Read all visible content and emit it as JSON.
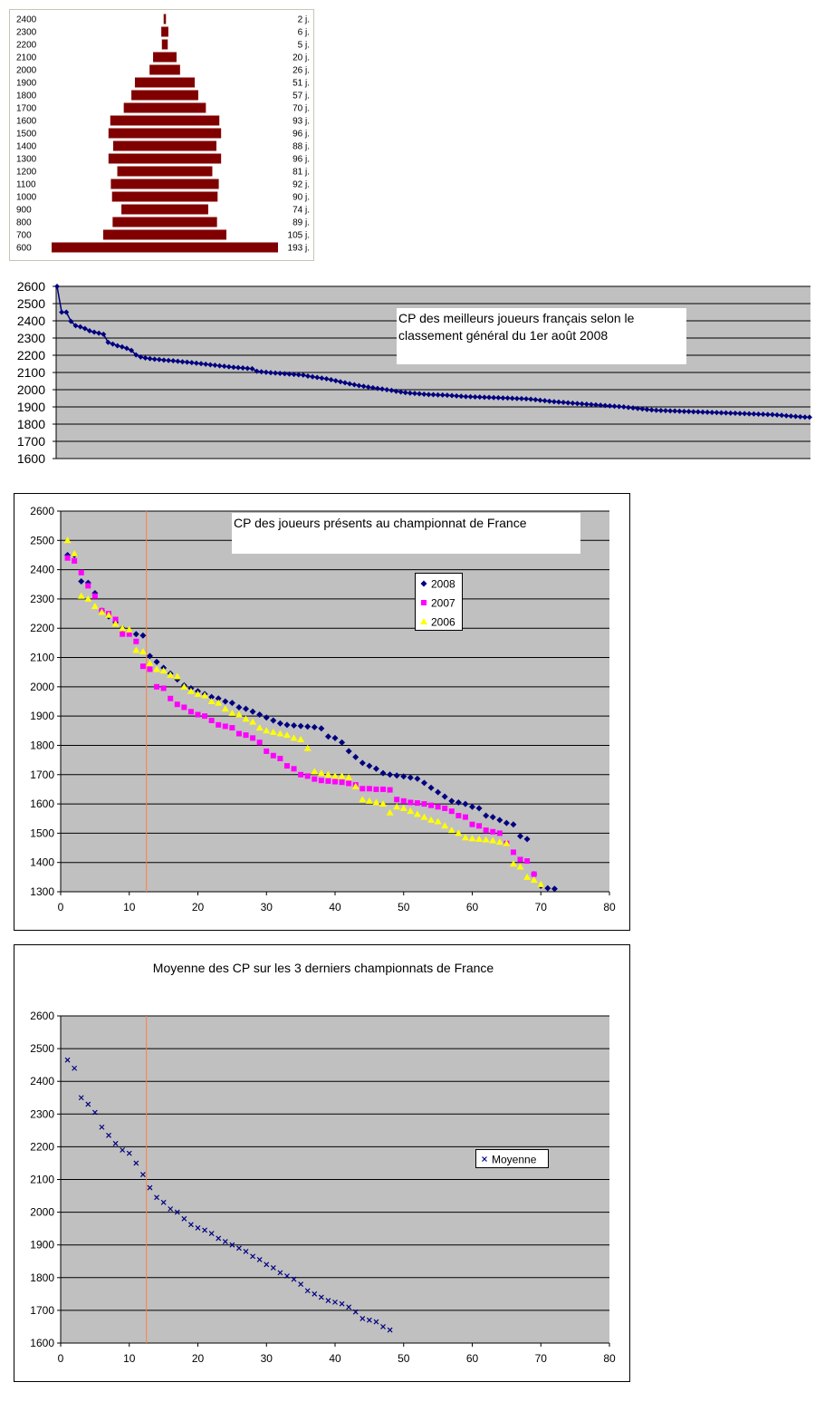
{
  "chart_data": [
    {
      "type": "bar",
      "colors": {
        "bar": "#800000",
        "frame": "#c9c4b4"
      },
      "categories": [
        "2400",
        "2300",
        "2200",
        "2100",
        "2000",
        "1900",
        "1800",
        "1700",
        "1600",
        "1500",
        "1400",
        "1300",
        "1200",
        "1100",
        "1000",
        "900",
        "800",
        "700",
        "600"
      ],
      "values": [
        2,
        6,
        5,
        20,
        26,
        51,
        57,
        70,
        93,
        96,
        88,
        96,
        81,
        92,
        90,
        74,
        89,
        105,
        193
      ],
      "value_labels": [
        "2 j.",
        "6 j.",
        "5 j.",
        "20 j.",
        "26 j.",
        "51 j.",
        "57 j.",
        "70 j.",
        "93 j.",
        "96 j.",
        "88 j.",
        "96 j.",
        "81 j.",
        "92 j.",
        "90 j.",
        "74 j.",
        "89 j.",
        "105 j.",
        "193 j."
      ]
    },
    {
      "type": "line",
      "title": "CP des meilleurs joueurs français selon le classement général du 1er août 2008",
      "title_lines": [
        "CP des meilleurs joueurs français selon le",
        "classement général du 1er août 2008"
      ],
      "ylim": [
        1600,
        2600
      ],
      "yticks": [
        "1600",
        "1700",
        "1800",
        "1900",
        "2000",
        "2100",
        "2200",
        "2300",
        "2400",
        "2500",
        "2600"
      ],
      "grid": true,
      "colors": {
        "plot_bg": "#c0c0c0",
        "series": "#000080"
      },
      "series": [
        {
          "values": [
            2600,
            2450,
            2450,
            2397,
            2372,
            2365,
            2355,
            2342,
            2334,
            2328,
            2322,
            2275,
            2265,
            2255,
            2249,
            2240,
            2228,
            2202,
            2190,
            2184,
            2180,
            2177,
            2175,
            2172,
            2170,
            2168,
            2165,
            2162,
            2160,
            2157,
            2154,
            2151,
            2148,
            2145,
            2142,
            2139,
            2136,
            2133,
            2130,
            2128,
            2126,
            2124,
            2122,
            2107,
            2104,
            2101,
            2099,
            2097,
            2095,
            2093,
            2091,
            2089,
            2087,
            2085,
            2079,
            2075,
            2071,
            2067,
            2063,
            2058,
            2052,
            2046,
            2040,
            2034,
            2029,
            2024,
            2020,
            2015,
            2011,
            2007,
            2004,
            2000,
            1996,
            1991,
            1987,
            1983,
            1980,
            1978,
            1976,
            1974,
            1972,
            1971,
            1970,
            1969,
            1968,
            1966,
            1964,
            1962,
            1960,
            1959,
            1958,
            1957,
            1956,
            1955,
            1954,
            1953,
            1952,
            1951,
            1950,
            1949,
            1948,
            1947,
            1945,
            1942,
            1939,
            1936,
            1933,
            1930,
            1928,
            1926,
            1924,
            1922,
            1920,
            1918,
            1916,
            1914,
            1912,
            1910,
            1908,
            1906,
            1904,
            1902,
            1900,
            1897,
            1894,
            1891,
            1888,
            1885,
            1882,
            1880,
            1879,
            1878,
            1877,
            1876,
            1875,
            1874,
            1873,
            1872,
            1871,
            1870,
            1869,
            1868,
            1867,
            1866,
            1865,
            1864,
            1863,
            1862,
            1861,
            1860,
            1859,
            1858,
            1857,
            1856,
            1855,
            1853,
            1851,
            1849,
            1847,
            1845,
            1843,
            1841,
            1840
          ]
        }
      ]
    },
    {
      "type": "scatter",
      "title": "CP des joueurs présents au championnat de France",
      "xlim": [
        0,
        80
      ],
      "ylim": [
        1300,
        2600
      ],
      "xticks": [
        "0",
        "10",
        "20",
        "30",
        "40",
        "50",
        "60",
        "70",
        "80"
      ],
      "yticks": [
        "1300",
        "1400",
        "1500",
        "1600",
        "1700",
        "1800",
        "1900",
        "2000",
        "2100",
        "2200",
        "2300",
        "2400",
        "2500",
        "2600"
      ],
      "grid": true,
      "legend_position": "right",
      "reference_x": 12.5,
      "colors": {
        "plot_bg": "#c0c0c0",
        "reference_line": "#ff8040"
      },
      "series": [
        {
          "name": "2008",
          "marker": "diamond",
          "color": "#000080",
          "x": [
            1,
            2,
            3,
            4,
            5,
            6,
            7,
            8,
            9,
            10,
            11,
            12,
            13,
            14,
            15,
            16,
            17,
            18,
            19,
            20,
            21,
            22,
            23,
            24,
            25,
            26,
            27,
            28,
            29,
            30,
            31,
            32,
            33,
            34,
            35,
            36,
            37,
            38,
            39,
            40,
            41,
            42,
            43,
            44,
            45,
            46,
            47,
            48,
            49,
            50,
            51,
            52,
            53,
            54,
            55,
            56,
            57,
            58,
            59,
            60,
            61,
            62,
            63,
            64,
            65,
            66,
            67,
            68,
            69,
            70,
            71,
            72
          ],
          "y": [
            2450,
            2450,
            2360,
            2355,
            2320,
            2260,
            2240,
            2220,
            2200,
            2190,
            2180,
            2175,
            2105,
            2085,
            2065,
            2045,
            2025,
            2005,
            1995,
            1985,
            1975,
            1965,
            1960,
            1950,
            1945,
            1930,
            1925,
            1915,
            1905,
            1895,
            1885,
            1875,
            1870,
            1868,
            1866,
            1864,
            1862,
            1858,
            1830,
            1825,
            1810,
            1780,
            1760,
            1740,
            1730,
            1720,
            1705,
            1700,
            1697,
            1694,
            1690,
            1686,
            1672,
            1655,
            1640,
            1625,
            1610,
            1605,
            1600,
            1590,
            1585,
            1560,
            1555,
            1545,
            1535,
            1530,
            1490,
            1480,
            1360,
            1320,
            1312,
            1310
          ]
        },
        {
          "name": "2007",
          "marker": "square",
          "color": "#ff00ff",
          "x": [
            1,
            2,
            3,
            4,
            5,
            6,
            7,
            8,
            9,
            10,
            11,
            12,
            13,
            14,
            15,
            16,
            17,
            18,
            19,
            20,
            21,
            22,
            23,
            24,
            25,
            26,
            27,
            28,
            29,
            30,
            31,
            32,
            33,
            34,
            35,
            36,
            37,
            38,
            39,
            40,
            41,
            42,
            43,
            44,
            45,
            46,
            47,
            48,
            49,
            50,
            51,
            52,
            53,
            54,
            55,
            56,
            57,
            58,
            59,
            60,
            61,
            62,
            63,
            64,
            65,
            66,
            67,
            68,
            69
          ],
          "y": [
            2440,
            2430,
            2390,
            2345,
            2310,
            2260,
            2250,
            2230,
            2180,
            2180,
            2155,
            2070,
            2060,
            2000,
            1995,
            1960,
            1940,
            1930,
            1915,
            1905,
            1900,
            1885,
            1870,
            1865,
            1860,
            1840,
            1835,
            1825,
            1810,
            1780,
            1765,
            1755,
            1730,
            1720,
            1700,
            1695,
            1685,
            1680,
            1678,
            1676,
            1674,
            1670,
            1665,
            1652,
            1652,
            1650,
            1650,
            1648,
            1615,
            1610,
            1605,
            1603,
            1600,
            1595,
            1590,
            1585,
            1575,
            1560,
            1555,
            1530,
            1525,
            1510,
            1505,
            1500,
            1465,
            1435,
            1410,
            1405,
            1360
          ]
        },
        {
          "name": "2006",
          "marker": "triangle",
          "color": "#ffff00",
          "x": [
            1,
            2,
            3,
            4,
            5,
            6,
            7,
            8,
            9,
            10,
            11,
            12,
            13,
            14,
            15,
            16,
            17,
            18,
            19,
            20,
            21,
            22,
            23,
            24,
            25,
            26,
            27,
            28,
            29,
            30,
            31,
            32,
            33,
            34,
            35,
            36,
            37,
            38,
            39,
            40,
            41,
            42,
            43,
            44,
            45,
            46,
            47,
            48,
            49,
            50,
            51,
            52,
            53,
            54,
            55,
            56,
            57,
            58,
            59,
            60,
            61,
            62,
            63,
            64,
            65,
            66,
            67,
            68,
            69,
            70
          ],
          "y": [
            2500,
            2455,
            2310,
            2300,
            2275,
            2255,
            2245,
            2215,
            2200,
            2195,
            2125,
            2120,
            2080,
            2060,
            2055,
            2040,
            2035,
            2000,
            1985,
            1975,
            1970,
            1950,
            1945,
            1925,
            1910,
            1905,
            1890,
            1880,
            1860,
            1850,
            1845,
            1840,
            1835,
            1825,
            1820,
            1790,
            1710,
            1705,
            1700,
            1695,
            1695,
            1690,
            1660,
            1615,
            1610,
            1605,
            1600,
            1570,
            1590,
            1585,
            1575,
            1565,
            1555,
            1545,
            1540,
            1525,
            1510,
            1500,
            1485,
            1482,
            1480,
            1478,
            1475,
            1470,
            1465,
            1395,
            1385,
            1350,
            1340,
            1325
          ]
        }
      ]
    },
    {
      "type": "scatter",
      "title": "Moyenne des CP sur les 3 derniers championnats de France",
      "xlim": [
        0,
        80
      ],
      "ylim": [
        1600,
        2600
      ],
      "xticks": [
        "0",
        "10",
        "20",
        "30",
        "40",
        "50",
        "60",
        "70",
        "80"
      ],
      "yticks": [
        "1600",
        "1700",
        "1800",
        "1900",
        "2000",
        "2100",
        "2200",
        "2300",
        "2400",
        "2500",
        "2600"
      ],
      "grid": true,
      "legend_position": "right",
      "reference_x": 12.5,
      "colors": {
        "plot_bg": "#c0c0c0",
        "reference_line": "#ff8040"
      },
      "series": [
        {
          "name": "Moyenne",
          "marker": "x",
          "color": "#000080",
          "x": [
            1,
            2,
            3,
            4,
            5,
            6,
            7,
            8,
            9,
            10,
            11,
            12,
            13,
            14,
            15,
            16,
            17,
            18,
            19,
            20,
            21,
            22,
            23,
            24,
            25,
            26,
            27,
            28,
            29,
            30,
            31,
            32,
            33,
            34,
            35,
            36,
            37,
            38,
            39,
            40,
            41,
            42,
            43,
            44,
            45,
            46,
            47,
            48
          ],
          "y": [
            2465,
            2440,
            2350,
            2330,
            2305,
            2260,
            2235,
            2210,
            2190,
            2180,
            2150,
            2115,
            2075,
            2045,
            2030,
            2010,
            2000,
            1980,
            1962,
            1952,
            1945,
            1935,
            1920,
            1910,
            1900,
            1890,
            1880,
            1865,
            1855,
            1840,
            1830,
            1815,
            1805,
            1795,
            1780,
            1760,
            1750,
            1740,
            1730,
            1725,
            1720,
            1710,
            1695,
            1675,
            1670,
            1665,
            1650,
            1640
          ]
        }
      ]
    }
  ]
}
